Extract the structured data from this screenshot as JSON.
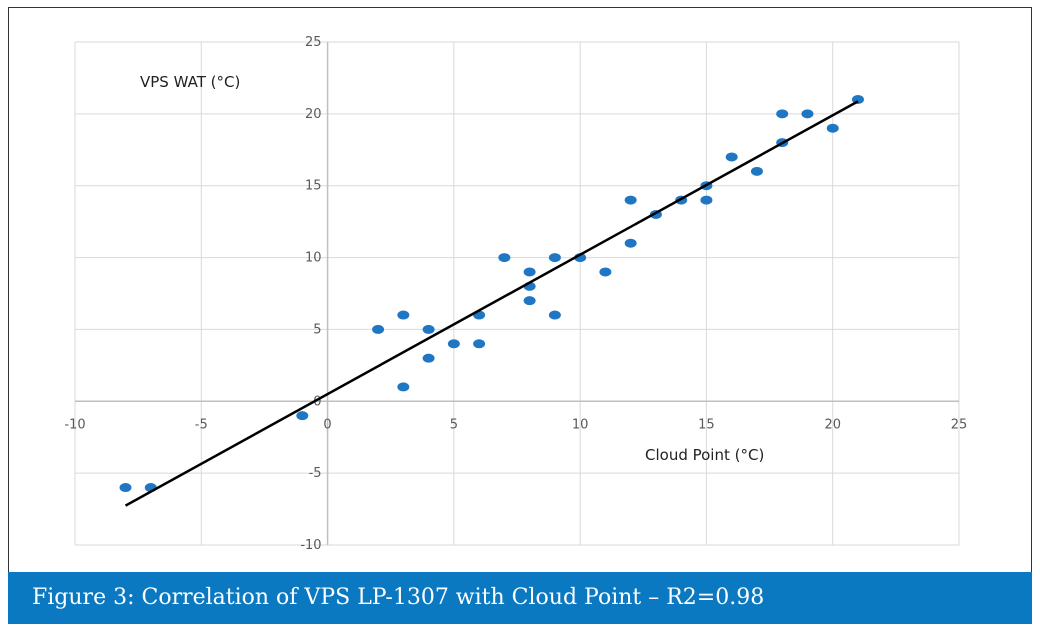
{
  "chart_data": {
    "type": "scatter",
    "xlabel": "Cloud Point (°C)",
    "ylabel": "VPS WAT (°C)",
    "xlim": [
      -10,
      25
    ],
    "ylim": [
      -10,
      25
    ],
    "xticks": [
      "-10",
      "-5",
      "0",
      "5",
      "10",
      "15",
      "20",
      "25"
    ],
    "yticks": [
      "-10",
      "-5",
      "0",
      "5",
      "10",
      "15",
      "20",
      "25"
    ],
    "grid": true,
    "marker_color": "#1f77c4",
    "trendline": {
      "type": "linear",
      "slope": 0.97,
      "intercept": 0.5,
      "x_range": [
        -8,
        21
      ],
      "color": "#000000"
    },
    "points": [
      [
        -8,
        -6
      ],
      [
        -7,
        -6
      ],
      [
        -1,
        -1
      ],
      [
        2,
        5
      ],
      [
        3,
        6
      ],
      [
        3,
        1
      ],
      [
        4,
        5
      ],
      [
        4,
        3
      ],
      [
        5,
        4
      ],
      [
        6,
        6
      ],
      [
        6,
        4
      ],
      [
        7,
        10
      ],
      [
        8,
        9
      ],
      [
        8,
        8
      ],
      [
        8,
        7
      ],
      [
        9,
        10
      ],
      [
        9,
        6
      ],
      [
        10,
        10
      ],
      [
        11,
        9
      ],
      [
        12,
        14
      ],
      [
        12,
        11
      ],
      [
        13,
        13
      ],
      [
        14,
        14
      ],
      [
        15,
        15
      ],
      [
        15,
        14
      ],
      [
        16,
        17
      ],
      [
        17,
        16
      ],
      [
        18,
        20
      ],
      [
        18,
        18
      ],
      [
        19,
        20
      ],
      [
        20,
        19
      ],
      [
        21,
        21
      ]
    ]
  },
  "caption": "Figure 3: Correlation of VPS LP-1307 with Cloud Point – R2=0.98",
  "caption_color": "#0b79c1"
}
